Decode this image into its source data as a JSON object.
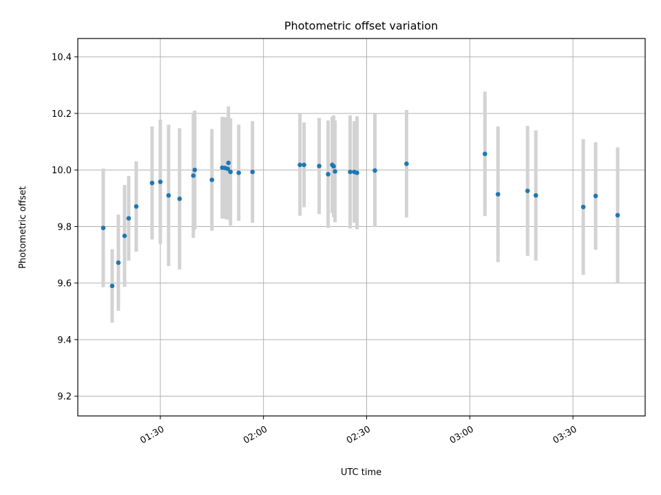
{
  "chart_data": {
    "type": "scatter",
    "title": "Photometric offset variation",
    "xlabel": "UTC time",
    "ylabel": "Photometric offset",
    "x_ticks": [
      "01:30",
      "02:00",
      "02:30",
      "03:00",
      "03:30"
    ],
    "y_ticks": [
      "9.2",
      "9.4",
      "9.6",
      "9.8",
      "10.0",
      "10.2",
      "10.4"
    ],
    "xlim": [
      "01:06",
      "03:51"
    ],
    "ylim": [
      9.13,
      10.465
    ],
    "grid": true,
    "colors": {
      "points": "#1f77b4",
      "errorbars": "#d3d3d3",
      "grid": "#b0b0b0"
    },
    "points": [
      {
        "x": "01:13:24",
        "y": 9.795,
        "err": 0.21
      },
      {
        "x": "01:16:00",
        "y": 9.59,
        "err": 0.13
      },
      {
        "x": "01:17:48",
        "y": 9.672,
        "err": 0.17
      },
      {
        "x": "01:19:36",
        "y": 9.767,
        "err": 0.18
      },
      {
        "x": "01:20:48",
        "y": 9.829,
        "err": 0.15
      },
      {
        "x": "01:23:00",
        "y": 9.871,
        "err": 0.16
      },
      {
        "x": "01:27:36",
        "y": 9.954,
        "err": 0.2
      },
      {
        "x": "01:30:00",
        "y": 9.958,
        "err": 0.22
      },
      {
        "x": "01:32:24",
        "y": 9.91,
        "err": 0.25
      },
      {
        "x": "01:35:36",
        "y": 9.898,
        "err": 0.25
      },
      {
        "x": "01:39:36",
        "y": 9.98,
        "err": 0.22
      },
      {
        "x": "01:40:00",
        "y": 10.0,
        "err": 0.21
      },
      {
        "x": "01:45:00",
        "y": 9.965,
        "err": 0.18
      },
      {
        "x": "01:48:00",
        "y": 10.008,
        "err": 0.18
      },
      {
        "x": "01:48:48",
        "y": 10.007,
        "err": 0.18
      },
      {
        "x": "01:49:36",
        "y": 10.004,
        "err": 0.18
      },
      {
        "x": "01:49:48",
        "y": 10.025,
        "err": 0.2
      },
      {
        "x": "01:50:24",
        "y": 9.993,
        "err": 0.19
      },
      {
        "x": "01:52:48",
        "y": 9.99,
        "err": 0.17
      },
      {
        "x": "01:56:48",
        "y": 9.993,
        "err": 0.18
      },
      {
        "x": "02:10:36",
        "y": 10.018,
        "err": 0.18
      },
      {
        "x": "02:11:48",
        "y": 10.018,
        "err": 0.15
      },
      {
        "x": "02:16:12",
        "y": 10.014,
        "err": 0.17
      },
      {
        "x": "02:18:48",
        "y": 9.985,
        "err": 0.19
      },
      {
        "x": "02:20:00",
        "y": 10.018,
        "err": 0.17
      },
      {
        "x": "02:20:24",
        "y": 10.013,
        "err": 0.18
      },
      {
        "x": "02:20:48",
        "y": 9.995,
        "err": 0.18
      },
      {
        "x": "02:25:12",
        "y": 9.993,
        "err": 0.2
      },
      {
        "x": "02:26:24",
        "y": 9.993,
        "err": 0.18
      },
      {
        "x": "02:27:12",
        "y": 9.99,
        "err": 0.2
      },
      {
        "x": "02:32:24",
        "y": 9.998,
        "err": 0.2
      },
      {
        "x": "02:41:36",
        "y": 10.022,
        "err": 0.19
      },
      {
        "x": "03:04:24",
        "y": 10.057,
        "err": 0.22
      },
      {
        "x": "03:08:12",
        "y": 9.914,
        "err": 0.24
      },
      {
        "x": "03:16:48",
        "y": 9.926,
        "err": 0.23
      },
      {
        "x": "03:19:12",
        "y": 9.91,
        "err": 0.23
      },
      {
        "x": "03:33:00",
        "y": 9.869,
        "err": 0.24
      },
      {
        "x": "03:36:36",
        "y": 9.908,
        "err": 0.19
      },
      {
        "x": "03:43:00",
        "y": 9.84,
        "err": 0.24
      }
    ]
  }
}
